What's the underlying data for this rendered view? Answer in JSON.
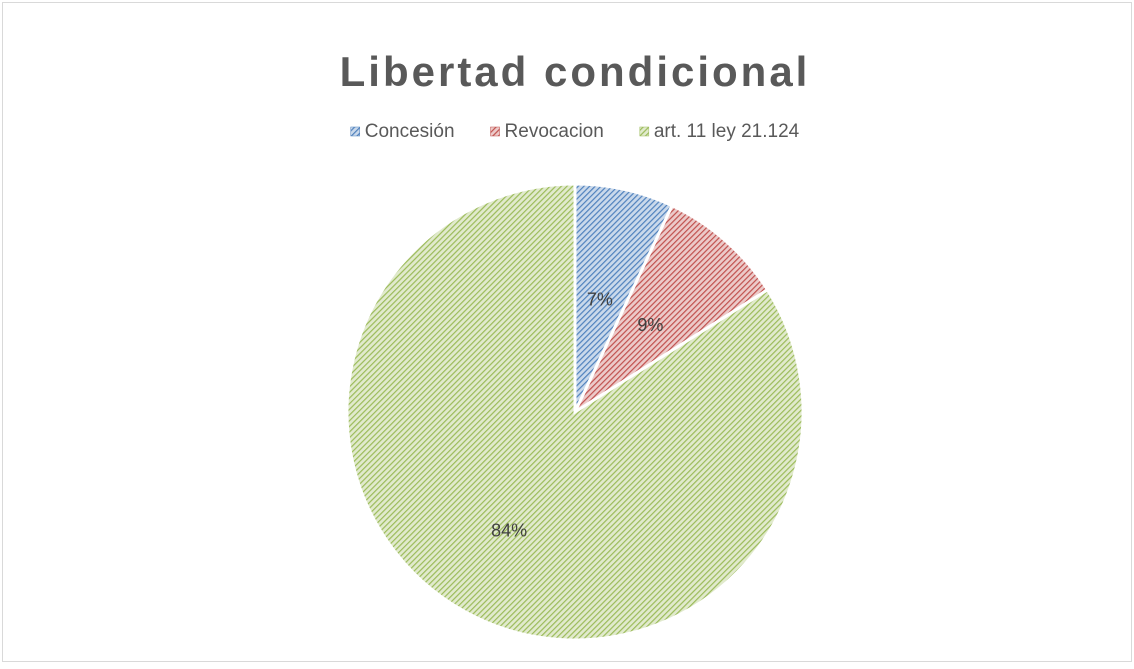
{
  "chart_data": {
    "type": "pie",
    "title": "Libertad condicional",
    "categories": [
      "Concesión",
      "Revocacion",
      "art. 11 ley 21.124"
    ],
    "values": [
      7,
      9,
      84
    ],
    "value_labels": [
      "7%",
      "9%",
      "84%"
    ],
    "colors": [
      "#4f81bd",
      "#c0504d",
      "#9bbb59"
    ],
    "legend": "top"
  }
}
